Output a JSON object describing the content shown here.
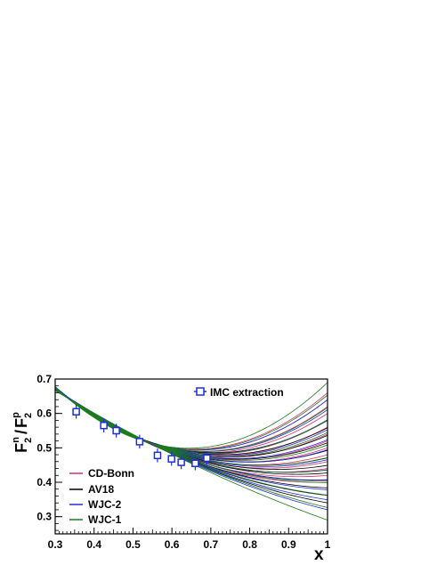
{
  "chart_data": {
    "type": "line",
    "xlabel": "x",
    "ylabel_main": "F",
    "ylabel_num_sub": "2",
    "ylabel_num_sup": "n",
    "ylabel_slash": "/",
    "ylabel_den_sub": "2",
    "ylabel_den_sup": "p",
    "xlim": [
      0.3,
      1.0
    ],
    "ylim": [
      0.25,
      0.7
    ],
    "xticks": [
      "0.3",
      "0.4",
      "0.5",
      "0.6",
      "0.7",
      "0.8",
      "0.9",
      "1"
    ],
    "yticks": [
      "0.3",
      "0.4",
      "0.5",
      "0.6",
      "0.7"
    ],
    "legend": [
      {
        "label": "CD-Bonn",
        "color": "#d6336c"
      },
      {
        "label": "AV18",
        "color": "#000000"
      },
      {
        "label": "WJC-2",
        "color": "#1f2fd6"
      },
      {
        "label": "WJC-1",
        "color": "#1f7a1f"
      }
    ],
    "band_series": [
      {
        "name": "CD-Bonn",
        "color": "#d6336c",
        "start_y": [
          0.676,
          0.672
        ],
        "end_y": [
          0.66,
          0.4
        ],
        "count": 14
      },
      {
        "name": "AV18",
        "color": "#000000",
        "start_y": [
          0.676,
          0.668
        ],
        "end_y": [
          0.58,
          0.34
        ],
        "count": 12
      },
      {
        "name": "WJC-2",
        "color": "#1f2fd6",
        "start_y": [
          0.678,
          0.67
        ],
        "end_y": [
          0.64,
          0.32
        ],
        "count": 12
      },
      {
        "name": "WJC-1",
        "color": "#1f7a1f",
        "start_y": [
          0.676,
          0.666
        ],
        "end_y": [
          0.69,
          0.29
        ],
        "count": 12
      }
    ],
    "imc_extraction": {
      "label": "IMC extraction",
      "color": "#1f2fd6",
      "points": [
        {
          "x": 0.354,
          "y": 0.605,
          "err": 0.02
        },
        {
          "x": 0.425,
          "y": 0.565,
          "err": 0.02
        },
        {
          "x": 0.457,
          "y": 0.55,
          "err": 0.02
        },
        {
          "x": 0.517,
          "y": 0.518,
          "err": 0.02
        },
        {
          "x": 0.563,
          "y": 0.478,
          "err": 0.02
        },
        {
          "x": 0.599,
          "y": 0.468,
          "err": 0.02
        },
        {
          "x": 0.624,
          "y": 0.458,
          "err": 0.02
        },
        {
          "x": 0.66,
          "y": 0.455,
          "err": 0.02
        },
        {
          "x": 0.69,
          "y": 0.47,
          "err": 0.02
        }
      ]
    }
  }
}
